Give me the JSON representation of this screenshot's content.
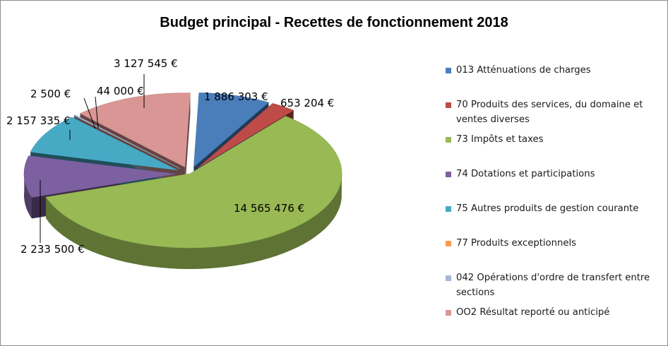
{
  "chart_data": {
    "type": "pie",
    "title": "Budget principal - Recettes de fonctionnement 2018",
    "legend_position": "right",
    "slices": [
      {
        "name": "013 Atténuations de charges",
        "value": 1886303,
        "label": "1 886 303 €",
        "color": "#4a7ebb"
      },
      {
        "name": "70 Produits des services, du domaine et ventes diverses",
        "value": 653204,
        "label": "653 204 €",
        "color": "#be4b48"
      },
      {
        "name": "73 Impôts et taxes",
        "value": 14565476,
        "label": "14 565 476 €",
        "color": "#98b954"
      },
      {
        "name": "74 Dotations et participations",
        "value": 2233500,
        "label": "2 233 500 €",
        "color": "#7d60a0"
      },
      {
        "name": "75 Autres produits de gestion courante",
        "value": 2157335,
        "label": "2 157 335 €",
        "color": "#46aac5"
      },
      {
        "name": "77 Produits exceptionnels",
        "value": 2500,
        "label": "2 500 €",
        "color": "#f59d56"
      },
      {
        "name": "042 Opérations d'ordre de transfert entre sections",
        "value": 44000,
        "label": "44 000 €",
        "color": "#a5b6d8"
      },
      {
        "name": "OO2 Résultat reporté ou anticipé",
        "value": 3127545,
        "label": "3 127 545 €",
        "color": "#d99694"
      }
    ]
  }
}
